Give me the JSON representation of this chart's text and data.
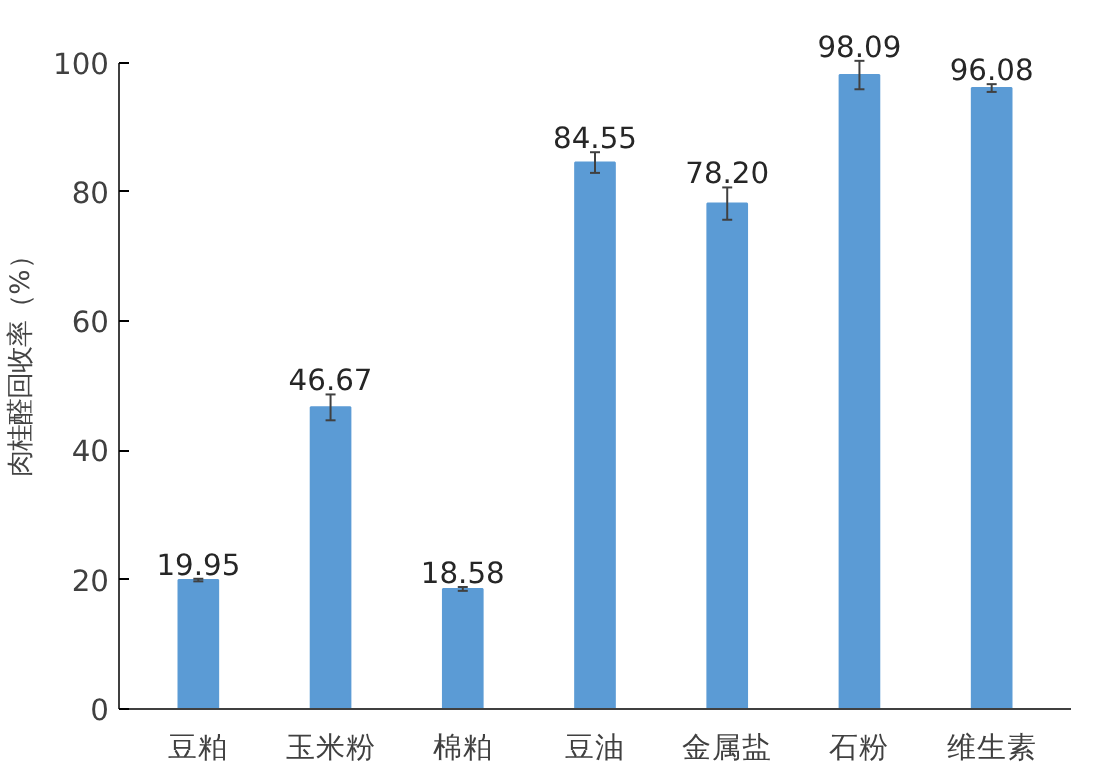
{
  "chart_data": {
    "type": "bar",
    "ylabel": "肉桂醛回收率（%）",
    "categories": [
      "豆粕",
      "玉米粉",
      "棉粕",
      "豆油",
      "金属盐",
      "石粉",
      "维生素"
    ],
    "values": [
      19.95,
      46.67,
      18.58,
      84.55,
      78.2,
      98.09,
      96.08
    ],
    "value_labels": [
      "19.95",
      "46.67",
      "18.58",
      "84.55",
      "78.20",
      "98.09",
      "96.08"
    ],
    "errors": [
      0.2,
      2,
      0.3,
      1.6,
      2.5,
      2.2,
      0.6
    ],
    "color": "#5b9bd5",
    "ylim": [
      0,
      100
    ],
    "yticks": [
      0,
      20,
      40,
      60,
      80,
      100
    ],
    "grid": false
  }
}
